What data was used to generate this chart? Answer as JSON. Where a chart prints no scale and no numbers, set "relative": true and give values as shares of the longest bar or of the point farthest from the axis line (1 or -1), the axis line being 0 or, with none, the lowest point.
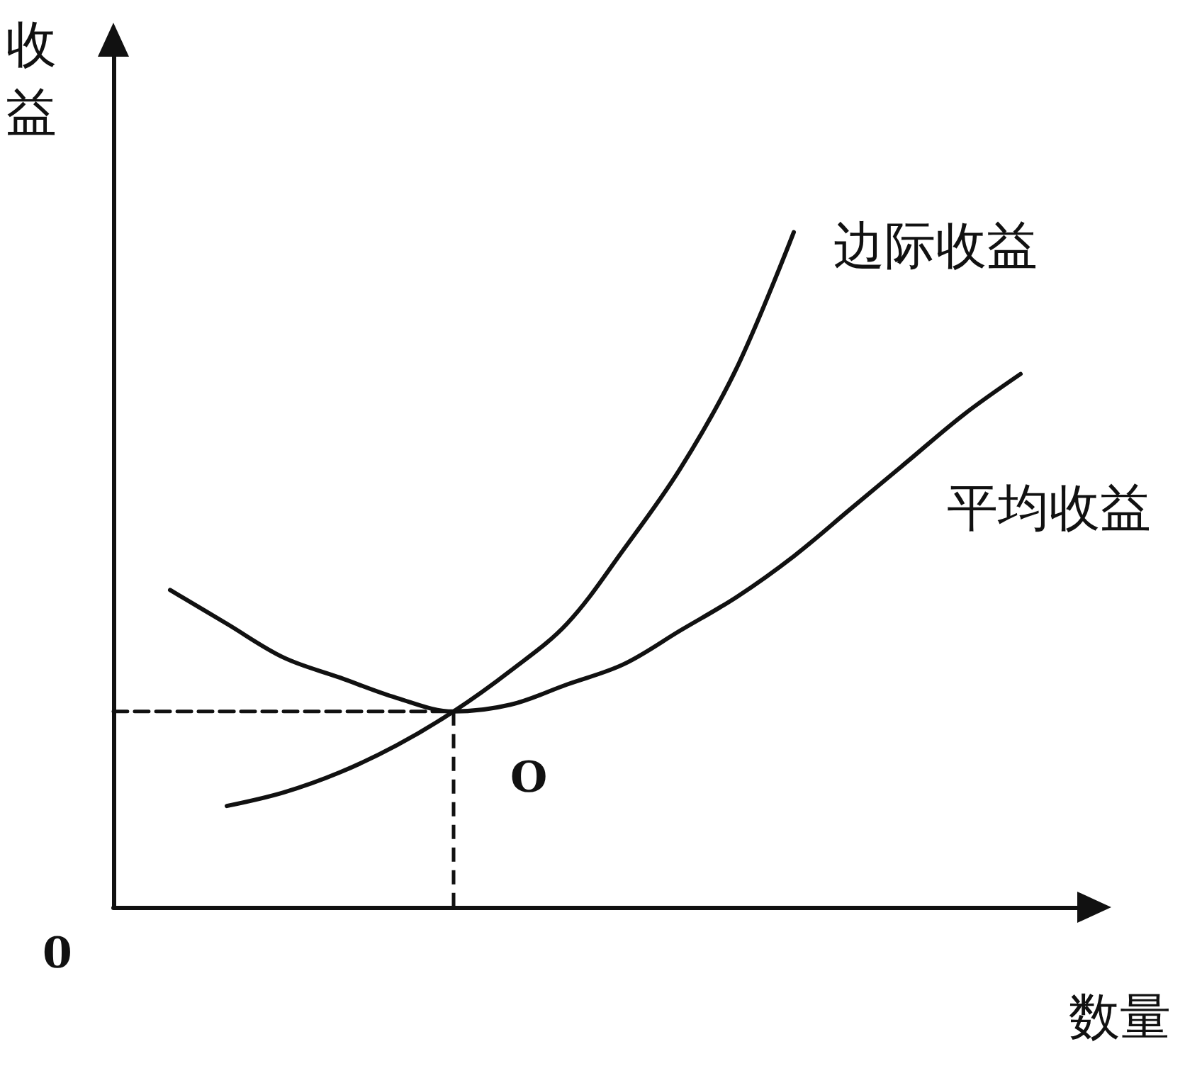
{
  "chart_data": {
    "type": "line",
    "relative": true,
    "grid": false,
    "legend": false,
    "marker": "none",
    "line_style": "solid",
    "ylabel": "收益",
    "xlabel": "数量",
    "categories": [
      null,
      null,
      null,
      null,
      null,
      null,
      null,
      null,
      null,
      null,
      null,
      null,
      null,
      null,
      null,
      null,
      null,
      null
    ],
    "series": [
      {
        "name": "边际收益",
        "color": "#111111",
        "values": [
          null,
          null,
          0.15,
          0.17,
          0.2,
          0.24,
          0.29,
          0.35,
          0.42,
          0.53,
          0.65,
          0.8,
          1.0,
          null,
          null,
          null,
          null,
          null
        ]
      },
      {
        "name": "平均收益",
        "color": "#111111",
        "values": [
          null,
          0.47,
          0.42,
          0.37,
          0.34,
          0.31,
          0.29,
          0.3,
          0.33,
          0.36,
          0.41,
          0.46,
          0.52,
          0.59,
          0.66,
          0.73,
          0.79,
          null
        ]
      },
      {
        "color": "#111111",
        "line_style": "dashed",
        "values": [
          0.29,
          0.29,
          0.29,
          0.29,
          0.29,
          0.29,
          0.29,
          null,
          null,
          null,
          null,
          null,
          null,
          null,
          null,
          null,
          null,
          null
        ]
      }
    ],
    "annotations": [
      "O",
      "0"
    ]
  }
}
